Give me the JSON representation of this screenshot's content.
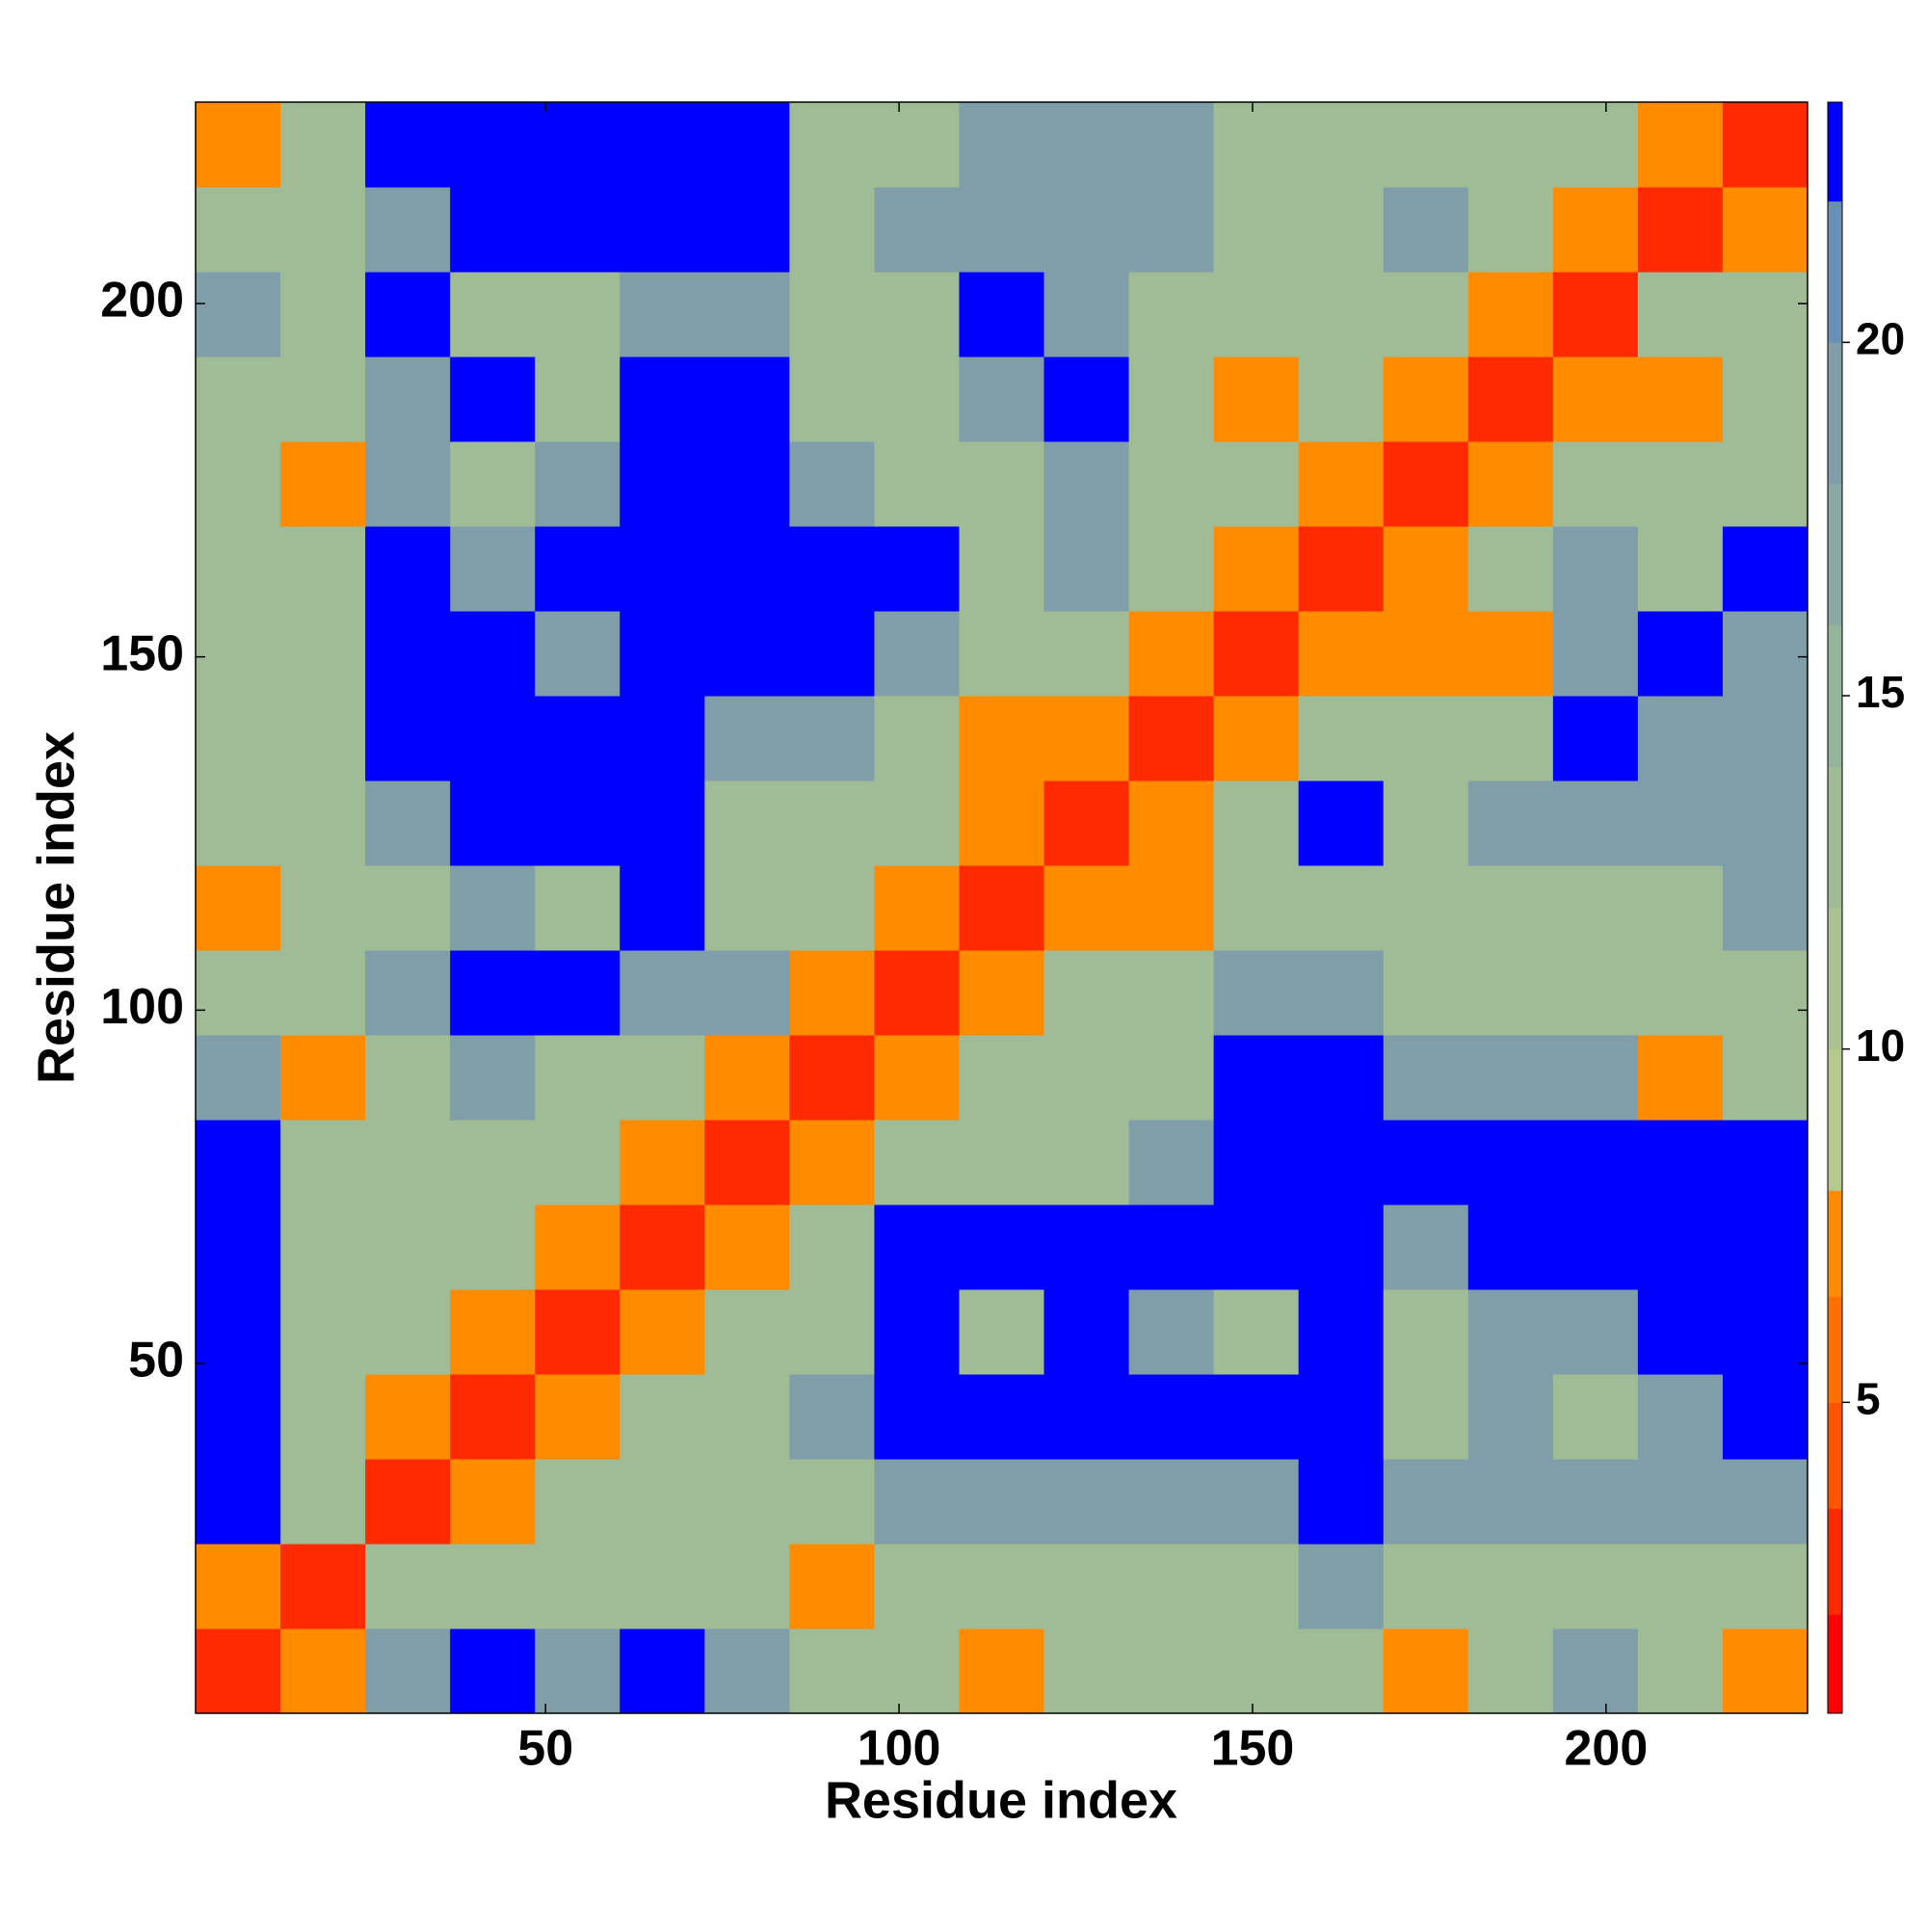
{
  "chart_data": {
    "type": "heatmap",
    "xlabel": "Residue index",
    "ylabel": "Residue index",
    "x": [
      6.5,
      18.5,
      30.5,
      42.5,
      54.5,
      66.5,
      78.5,
      90.5,
      102.5,
      114.5,
      126.5,
      138.5,
      150.5,
      162.5,
      174.5,
      186.5,
      198.5,
      210.5,
      222.5
    ],
    "y": [
      6.5,
      18.5,
      30.5,
      42.5,
      54.5,
      66.5,
      78.5,
      90.5,
      102.5,
      114.5,
      126.5,
      138.5,
      150.5,
      162.5,
      174.5,
      186.5,
      198.5,
      210.5,
      222.5
    ],
    "xlim": [
      0.5,
      228.5
    ],
    "ylim": [
      0.5,
      228.5
    ],
    "xticks": [
      50,
      100,
      150,
      200
    ],
    "yticks": [
      50,
      100,
      150,
      200
    ],
    "values": [
      [
        2.5,
        7,
        19,
        23,
        19,
        23,
        19,
        13,
        13,
        7,
        13,
        13,
        13,
        13,
        7,
        13,
        19,
        13,
        7
      ],
      [
        7,
        2.5,
        13,
        13,
        13,
        13,
        13,
        7,
        13,
        13,
        13,
        13,
        13,
        19,
        13,
        13,
        13,
        13,
        13
      ],
      [
        23,
        13,
        2.5,
        7,
        13,
        13,
        13,
        13,
        19,
        19,
        19,
        19,
        19,
        23,
        19,
        19,
        19,
        19,
        19
      ],
      [
        23,
        13,
        7,
        2.5,
        7,
        13,
        13,
        19,
        23,
        23,
        23,
        23,
        23,
        23,
        13,
        19,
        13,
        19,
        23
      ],
      [
        23,
        13,
        13,
        7,
        2.5,
        7,
        13,
        13,
        23,
        13,
        23,
        19,
        13,
        23,
        13,
        19,
        19,
        23,
        23
      ],
      [
        23,
        13,
        13,
        13,
        7,
        2.5,
        7,
        13,
        23,
        23,
        23,
        23,
        23,
        23,
        19,
        23,
        23,
        23,
        23
      ],
      [
        23,
        13,
        13,
        13,
        13,
        7,
        2.5,
        7,
        13,
        13,
        13,
        19,
        23,
        23,
        23,
        23,
        23,
        23,
        23
      ],
      [
        19,
        7,
        13,
        19,
        13,
        13,
        7,
        2.5,
        7,
        13,
        13,
        13,
        23,
        23,
        19,
        19,
        19,
        7,
        13
      ],
      [
        13,
        13,
        19,
        23,
        23,
        19,
        19,
        7,
        2.5,
        7,
        13,
        13,
        19,
        19,
        13,
        13,
        13,
        13,
        13
      ],
      [
        7,
        13,
        13,
        19,
        13,
        23,
        13,
        13,
        7,
        2.5,
        7,
        7,
        13,
        13,
        13,
        13,
        13,
        13,
        19
      ],
      [
        13,
        13,
        19,
        23,
        23,
        23,
        13,
        13,
        13,
        7,
        2.5,
        7,
        13,
        23,
        13,
        19,
        19,
        19,
        19
      ],
      [
        13,
        13,
        23,
        23,
        23,
        23,
        19,
        19,
        13,
        7,
        7,
        2.5,
        7,
        13,
        13,
        13,
        23,
        19,
        19
      ],
      [
        13,
        13,
        23,
        23,
        19,
        23,
        23,
        23,
        19,
        13,
        13,
        7,
        2.5,
        7,
        7,
        7,
        19,
        23,
        19
      ],
      [
        13,
        13,
        23,
        19,
        23,
        23,
        23,
        23,
        23,
        13,
        19,
        13,
        7,
        2.5,
        7,
        13,
        19,
        13,
        23
      ],
      [
        13,
        7,
        19,
        13,
        19,
        23,
        23,
        19,
        13,
        13,
        19,
        13,
        13,
        7,
        2.5,
        7,
        13,
        13,
        13
      ],
      [
        13,
        13,
        19,
        23,
        13,
        23,
        23,
        13,
        13,
        19,
        23,
        13,
        7,
        13,
        7,
        2.5,
        7,
        7,
        13
      ],
      [
        19,
        13,
        23,
        13,
        13,
        19,
        19,
        13,
        13,
        23,
        19,
        13,
        13,
        13,
        13,
        7,
        2.5,
        13,
        13
      ],
      [
        13,
        13,
        19,
        23,
        23,
        23,
        23,
        13,
        19,
        19,
        19,
        19,
        13,
        13,
        19,
        13,
        7,
        2.5,
        7
      ],
      [
        7,
        13,
        23,
        23,
        23,
        23,
        23,
        13,
        13,
        19,
        19,
        19,
        13,
        13,
        13,
        13,
        13,
        7,
        2.5
      ]
    ],
    "clim": [
      0.6,
      23.4
    ],
    "cticks": [
      5,
      10,
      15,
      20
    ],
    "color_levels": [
      0.6,
      2,
      3.5,
      5,
      6.5,
      8,
      10,
      12,
      14,
      16,
      18,
      20,
      22,
      23.4
    ],
    "colors": [
      "#ff0000",
      "#ff2a00",
      "#ff5500",
      "#ff7000",
      "#ff8c00",
      "#b5c98e",
      "#abc392",
      "#a0bc96",
      "#95b49c",
      "#8aa9a3",
      "#7f9eaa",
      "#6a8fb5",
      "#0000ff"
    ]
  }
}
